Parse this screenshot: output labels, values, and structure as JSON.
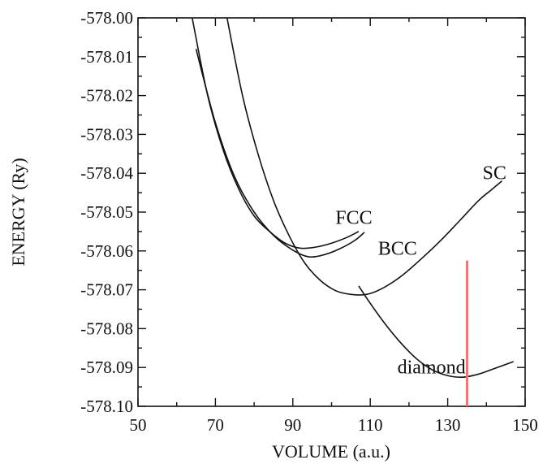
{
  "chart_data": {
    "type": "line",
    "title": "",
    "xlabel": "VOLUME (a.u.)",
    "ylabel": "ENERGY (Ry)",
    "xlim": [
      50,
      150
    ],
    "ylim": [
      -578.1,
      -578.0
    ],
    "xticks": [
      "50",
      "70",
      "90",
      "110",
      "130",
      "150"
    ],
    "yticks": [
      "-578.00",
      "-578.01",
      "-578.02",
      "-578.03",
      "-578.04",
      "-578.05",
      "-578.06",
      "-578.07",
      "-578.08",
      "-578.09",
      "-578.10"
    ],
    "grid": false,
    "series": [
      {
        "name": "FCC",
        "color": "#111111",
        "points": [
          [
            64,
            -578.0
          ],
          [
            68,
            -578.02
          ],
          [
            72,
            -578.034
          ],
          [
            76,
            -578.044
          ],
          [
            80,
            -578.051
          ],
          [
            84,
            -578.055
          ],
          [
            88,
            -578.058
          ],
          [
            92,
            -578.0593
          ],
          [
            96,
            -578.059
          ],
          [
            100,
            -578.058
          ],
          [
            104,
            -578.0565
          ],
          [
            107,
            -578.055
          ]
        ]
      },
      {
        "name": "BCC",
        "color": "#111111",
        "points": [
          [
            65,
            -578.008
          ],
          [
            70,
            -578.027
          ],
          [
            75,
            -578.041
          ],
          [
            80,
            -578.05
          ],
          [
            85,
            -578.056
          ],
          [
            90,
            -578.0598
          ],
          [
            94,
            -578.0615
          ],
          [
            98,
            -578.061
          ],
          [
            102,
            -578.0595
          ],
          [
            106,
            -578.0573
          ],
          [
            108.5,
            -578.0552
          ]
        ]
      },
      {
        "name": "SC",
        "color": "#111111",
        "points": [
          [
            73,
            -578.0
          ],
          [
            77,
            -578.02
          ],
          [
            81,
            -578.035
          ],
          [
            85,
            -578.047
          ],
          [
            89,
            -578.056
          ],
          [
            93,
            -578.063
          ],
          [
            97,
            -578.0675
          ],
          [
            101,
            -578.0702
          ],
          [
            105,
            -578.0712
          ],
          [
            109,
            -578.0712
          ],
          [
            113,
            -578.0697
          ],
          [
            118,
            -578.0665
          ],
          [
            123,
            -578.0622
          ],
          [
            128,
            -578.0575
          ],
          [
            133,
            -578.0523
          ],
          [
            138,
            -578.047
          ],
          [
            141,
            -578.0445
          ],
          [
            144,
            -578.042
          ]
        ]
      },
      {
        "name": "diamond",
        "color": "#111111",
        "points": [
          [
            107,
            -578.069
          ],
          [
            110,
            -578.0735
          ],
          [
            114,
            -578.079
          ],
          [
            118,
            -578.0838
          ],
          [
            122,
            -578.0878
          ],
          [
            126,
            -578.0906
          ],
          [
            130,
            -578.0921
          ],
          [
            134,
            -578.0925
          ],
          [
            138,
            -578.0917
          ],
          [
            142,
            -578.0903
          ],
          [
            147,
            -578.0885
          ]
        ]
      }
    ],
    "annotations": [
      {
        "text": "FCC",
        "x": 101,
        "y": -578.053
      },
      {
        "text": "BCC",
        "x": 112,
        "y": -578.061
      },
      {
        "text": "SC",
        "x": 139,
        "y": -578.0415
      },
      {
        "text": "diamond",
        "x": 117,
        "y": -578.0915
      }
    ],
    "marker_line": {
      "x": 135,
      "y_range": [
        -578.0625,
        -578.1
      ],
      "color": "#ff6f6f"
    }
  }
}
